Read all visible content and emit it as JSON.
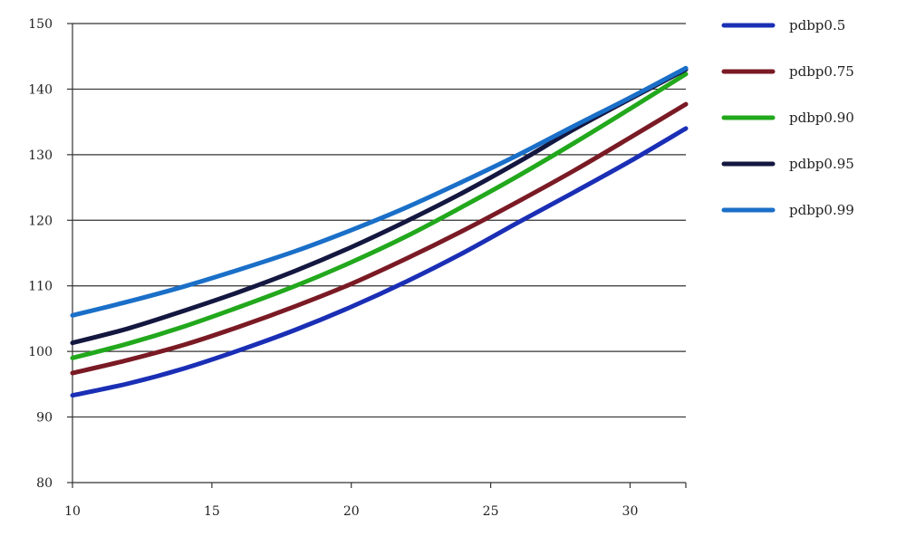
{
  "chart_data": {
    "type": "line",
    "title": "",
    "xlabel": "",
    "ylabel": "",
    "xlim": [
      10,
      32
    ],
    "ylim": [
      80,
      150
    ],
    "x_ticks": [
      10,
      15,
      20,
      25,
      30
    ],
    "y_ticks": [
      80,
      90,
      100,
      110,
      120,
      130,
      140,
      150
    ],
    "grid": "horizontal",
    "legend_position": "right",
    "x": [
      10,
      12,
      14,
      16,
      18,
      20,
      22,
      24,
      26,
      28,
      30,
      32
    ],
    "series": [
      {
        "name": "pdbp0.5",
        "color": "#1a2fb5",
        "values": [
          93.3,
          95.1,
          97.4,
          100.2,
          103.3,
          106.8,
          110.7,
          115.0,
          119.7,
          124.3,
          129.0,
          134.0
        ]
      },
      {
        "name": "pdbp0.75",
        "color": "#7a1a24",
        "values": [
          96.7,
          98.7,
          101.0,
          103.8,
          106.9,
          110.3,
          114.2,
          118.4,
          122.9,
          127.6,
          132.6,
          137.7
        ]
      },
      {
        "name": "pdbp0.90",
        "color": "#22a81c",
        "values": [
          99.0,
          101.2,
          103.8,
          106.8,
          110.0,
          113.6,
          117.6,
          122.1,
          126.8,
          131.8,
          137.0,
          142.3
        ]
      },
      {
        "name": "pdbp0.95",
        "color": "#14173f",
        "values": [
          101.3,
          103.5,
          106.2,
          109.1,
          112.3,
          115.9,
          119.9,
          124.2,
          128.9,
          133.9,
          138.5,
          143.0
        ]
      },
      {
        "name": "pdbp0.99",
        "color": "#1a6fc8",
        "values": [
          105.5,
          107.6,
          109.9,
          112.5,
          115.3,
          118.5,
          122.0,
          125.9,
          130.0,
          134.4,
          138.7,
          143.2
        ]
      }
    ]
  }
}
